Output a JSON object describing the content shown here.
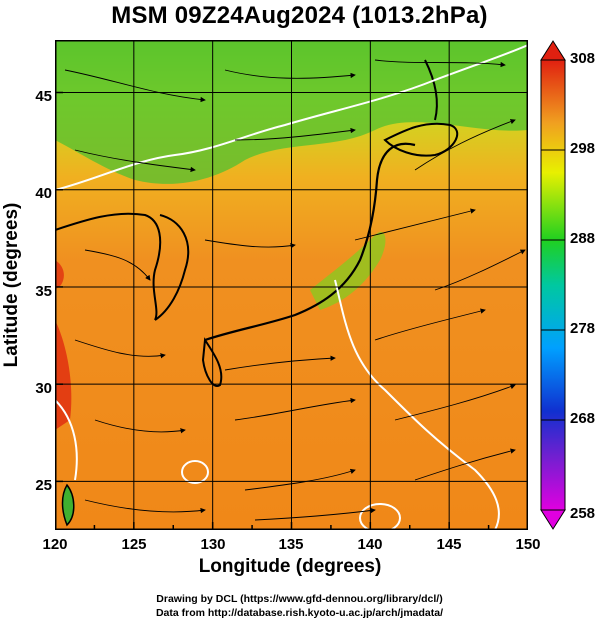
{
  "title": "MSM 09Z24Aug2024 (1013.2hPa)",
  "axes": {
    "xlabel": "Longitude (degrees)",
    "ylabel": "Latitude  (degrees)",
    "xticks": [
      "120",
      "125",
      "130",
      "135",
      "140",
      "145",
      "150"
    ],
    "yticks": [
      "25",
      "30",
      "35",
      "40",
      "45"
    ]
  },
  "map": {
    "lon_range": [
      120,
      150
    ],
    "lat_range": [
      22.5,
      47.7
    ],
    "field": "temperature",
    "field_unit": "K",
    "overlay": "streamlines"
  },
  "colorbar": {
    "ticks": [
      "308",
      "298",
      "288",
      "278",
      "268",
      "258"
    ],
    "range": [
      258,
      308
    ],
    "colors": [
      "#d000d0",
      "#2020d0",
      "#00a0ff",
      "#00d060",
      "#f0f000",
      "#f09010",
      "#e02010"
    ]
  },
  "credits": {
    "line1": "Drawing by DCL (https://www.gfd-dennou.org/library/dcl/)",
    "line2": "Data from http://database.rish.kyoto-u.ac.jp/arch/jmadata/"
  }
}
